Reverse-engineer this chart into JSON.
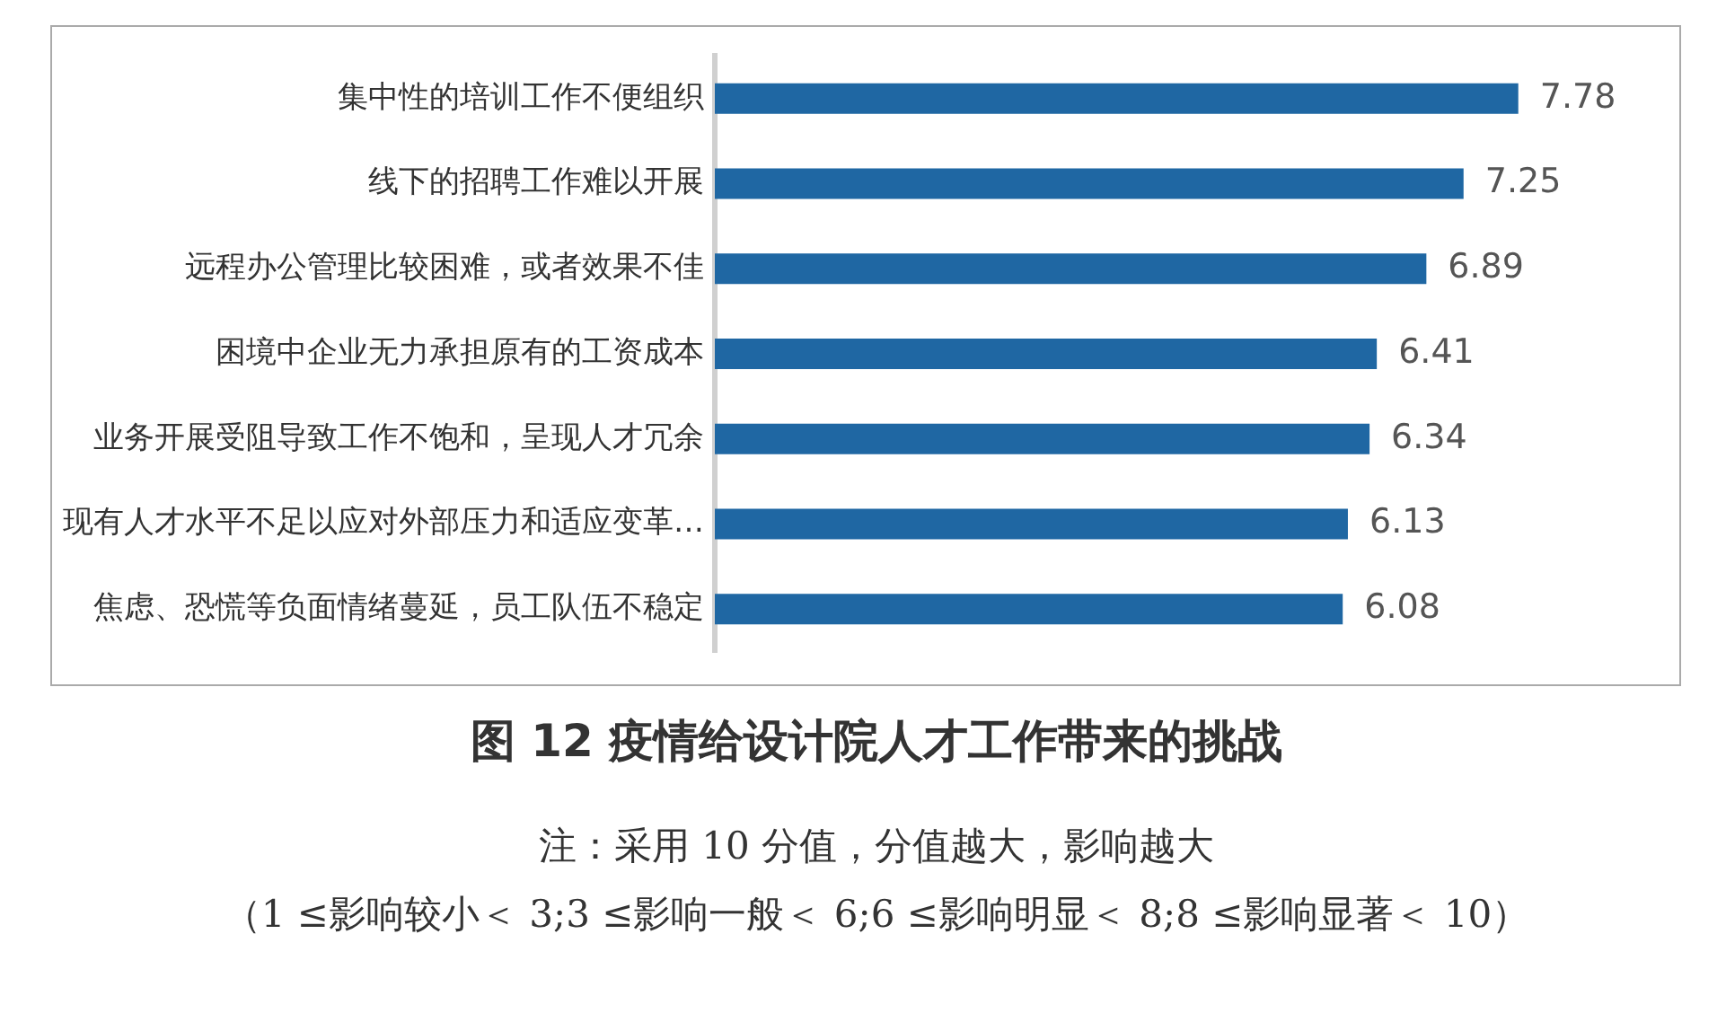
{
  "chart_data": {
    "type": "bar",
    "orientation": "horizontal",
    "title": "图 12 疫情给设计院人才工作带来的挑战",
    "annotations": [
      "注：采用 10 分值，分值越大，影响越大",
      "（1 ≤影响较小＜ 3;3 ≤影响一般＜ 6;6 ≤影响明显＜ 8;8 ≤影响显著＜ 10）"
    ],
    "categories": [
      "集中性的培训工作不便组织",
      "线下的招聘工作难以开展",
      "远程办公管理比较困难，或者效果不佳",
      "困境中企业无力承担原有的工资成本",
      "业务开展受阻导致工作不饱和，呈现人才冗余",
      "现有人才水平不足以应对外部压力和适应变革…",
      "焦虑、恐慌等负面情绪蔓延，员工队伍不稳定"
    ],
    "values": [
      7.78,
      7.25,
      6.89,
      6.41,
      6.34,
      6.13,
      6.08
    ],
    "color": "#1f67a3",
    "data_labels": true,
    "tick_labels": "y"
  }
}
